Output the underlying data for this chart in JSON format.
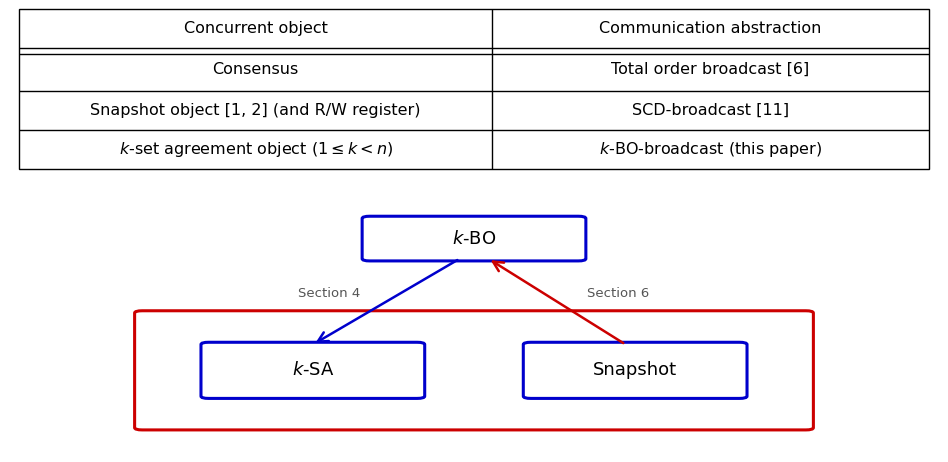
{
  "table": {
    "headers": [
      "Concurrent object",
      "Communication abstraction"
    ],
    "rows": [
      [
        "Consensus",
        "Total order broadcast [6]"
      ],
      [
        "Snapshot object [1, 2] (and R/W register)",
        "SCD-broadcast [11]"
      ],
      [
        "$k$-set agreement object ($1 \\leq k < n$)",
        "$k$-BO-broadcast (this paper)"
      ]
    ]
  },
  "diagram": {
    "kbo_label": "$k$-BO",
    "ksa_label": "$k$-SA",
    "snapshot_label": "Snapshot",
    "section4_label": "Section 4",
    "section6_label": "Section 6",
    "blue_color": "#0000CC",
    "red_color": "#CC0000"
  },
  "bg_color": "#ffffff",
  "font_size_table": 11.5,
  "font_size_diagram": 13,
  "font_size_section": 9.5
}
